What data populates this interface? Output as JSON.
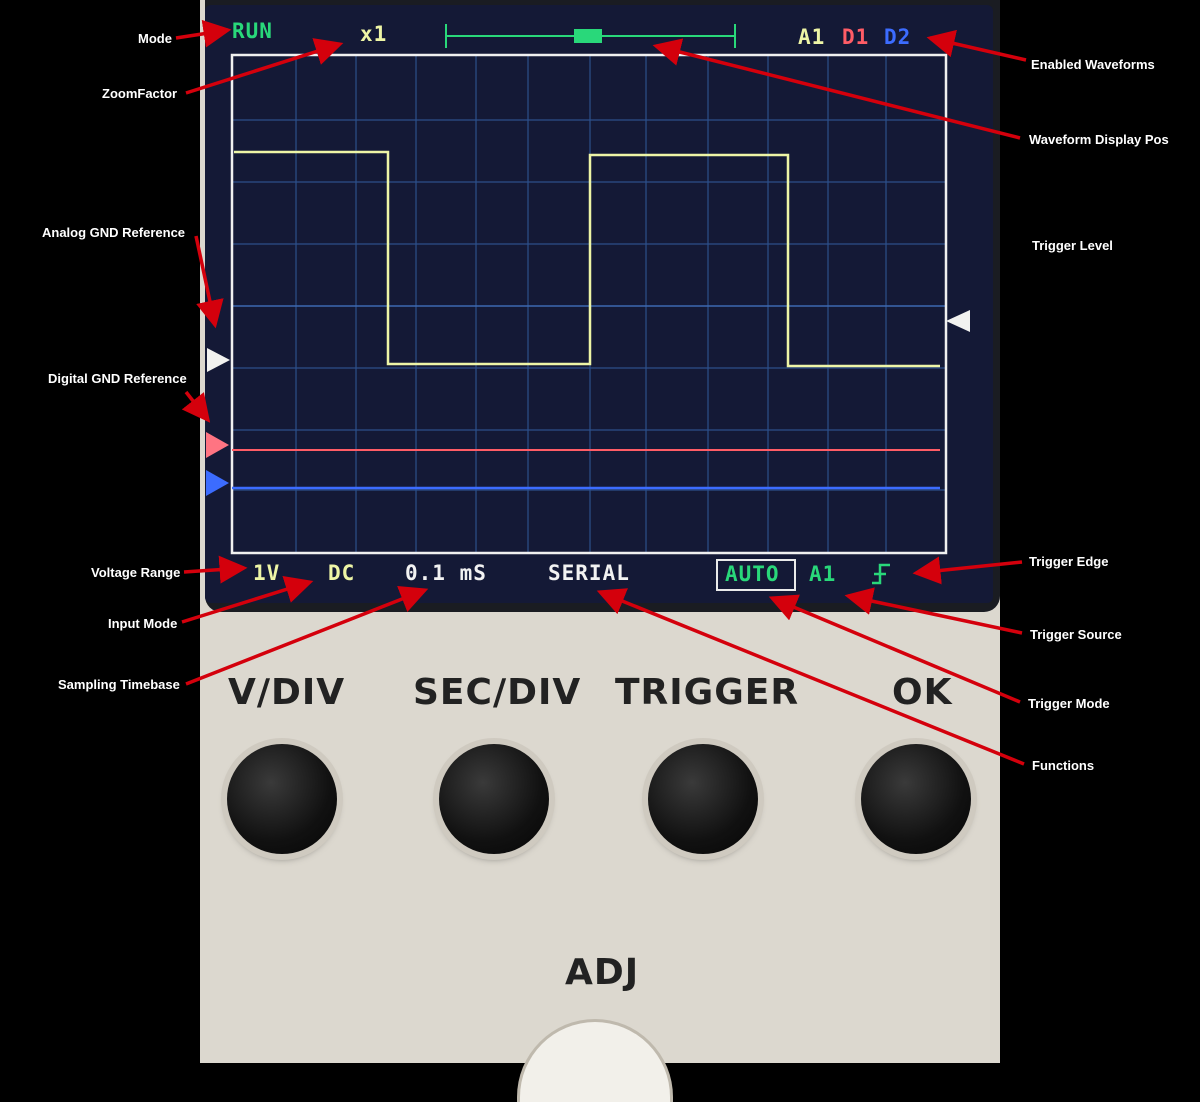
{
  "screen": {
    "mode": "RUN",
    "zoom": "x1",
    "waveforms": {
      "a1": "A1",
      "d1": "D1",
      "d2": "D2"
    },
    "voltage_range": "1V",
    "input_mode": "DC",
    "timebase": "0.1 mS",
    "function": "SERIAL",
    "trigger_mode": "AUTO",
    "trigger_source": "A1",
    "trigger_edge_icon": "rising-edge-icon"
  },
  "annotations": {
    "mode": "Mode",
    "zoom_factor": "ZoomFactor",
    "analog_gnd": "Analog GND Reference",
    "digital_gnd": "Digital GND Reference",
    "voltage_range": "Voltage Range",
    "input_mode": "Input Mode",
    "sampling_timebase": "Sampling Timebase",
    "enabled_waveforms": "Enabled Waveforms",
    "waveform_display_pos": "Waveform Display Pos",
    "trigger_level": "Trigger Level",
    "trigger_edge": "Trigger Edge",
    "trigger_source": "Trigger Source",
    "trigger_mode": "Trigger Mode",
    "functions": "Functions"
  },
  "buttons": {
    "vdiv": "V/DIV",
    "secdiv": "SEC/DIV",
    "trigger": "TRIGGER",
    "ok": "OK",
    "adj": "ADJ"
  },
  "colors": {
    "analog": "#eef5a6",
    "digital1": "#ff5c66",
    "digital2": "#3c6cff",
    "status": "#29d87a",
    "grid": "#2c4f8a",
    "arrow": "#d4000c"
  }
}
